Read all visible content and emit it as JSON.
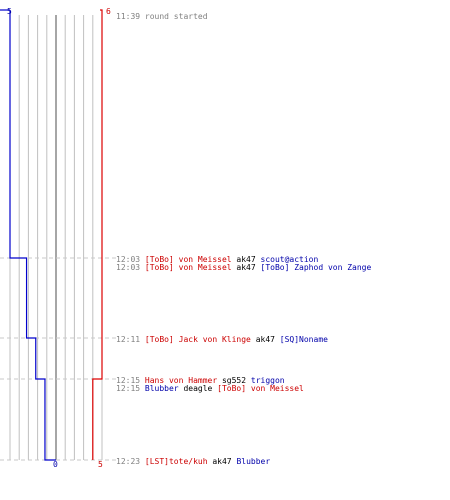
{
  "colors": {
    "team_blue": "#0000cc",
    "team_red": "#dd0000",
    "grid": "#c0c0c0",
    "zero_line": "#808080",
    "dashed": "#c8c8c8",
    "time_text": "#808080"
  },
  "team_counts": {
    "blue_start": "5",
    "red_start": "6",
    "blue_end": "0",
    "red_end": "5"
  },
  "chart_data": {
    "type": "line",
    "ylim": [
      0,
      6
    ],
    "series": [
      {
        "team": "blue",
        "values": [
          5,
          4,
          3,
          2,
          1,
          0
        ]
      },
      {
        "team": "red",
        "values": [
          6,
          5
        ]
      }
    ]
  },
  "events": [
    {
      "time": "11:39",
      "parts": [
        {
          "text": "round started",
          "color": "gray"
        }
      ]
    },
    {
      "time": "12:03",
      "parts": [
        {
          "text": "[ToBo] von Meissel",
          "color": "red"
        },
        {
          "text": " ak47 ",
          "color": "black"
        },
        {
          "text": "scout@action",
          "color": "blue"
        }
      ]
    },
    {
      "time": "12:03",
      "parts": [
        {
          "text": "[ToBo] von Meissel",
          "color": "red"
        },
        {
          "text": " ak47 ",
          "color": "black"
        },
        {
          "text": "[ToBo] Zaphod von Zange",
          "color": "blue"
        }
      ]
    },
    {
      "time": "12:11",
      "parts": [
        {
          "text": "[ToBo] Jack von Klinge",
          "color": "red"
        },
        {
          "text": " ak47 ",
          "color": "black"
        },
        {
          "text": "[SQ]Noname",
          "color": "blue"
        }
      ]
    },
    {
      "time": "12:15",
      "parts": [
        {
          "text": "Hans von Hammer",
          "color": "red"
        },
        {
          "text": " sg552 ",
          "color": "black"
        },
        {
          "text": "triggon",
          "color": "blue"
        }
      ]
    },
    {
      "time": "12:15",
      "parts": [
        {
          "text": "Blubber",
          "color": "blue"
        },
        {
          "text": " deagle ",
          "color": "black"
        },
        {
          "text": "[ToBo] von Meissel",
          "color": "red"
        }
      ]
    },
    {
      "time": "12:23",
      "parts": [
        {
          "text": "[LST]tote/kuh",
          "color": "red"
        },
        {
          "text": " ak47 ",
          "color": "black"
        },
        {
          "text": "Blubber",
          "color": "blue"
        }
      ]
    }
  ]
}
